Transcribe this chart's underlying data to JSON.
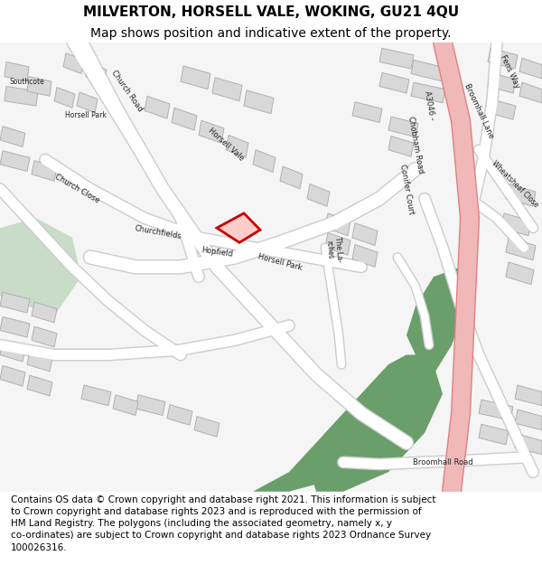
{
  "title_line1": "MILVERTON, HORSELL VALE, WOKING, GU21 4QU",
  "title_line2": "Map shows position and indicative extent of the property.",
  "copyright_text": "Contains OS data © Crown copyright and database right 2021. This information is subject to Crown copyright and database rights 2023 and is reproduced with the permission of HM Land Registry. The polygons (including the associated geometry, namely x, y co-ordinates) are subject to Crown copyright and database rights 2023 Ordnance Survey 100026316.",
  "map_bg": "#f5f5f5",
  "road_color": "#e8e8e8",
  "building_color": "#d8d8d8",
  "building_edge": "#b0b0b0",
  "green_color": "#6a9e6a",
  "green_light": "#c8dcc8",
  "pink_road": "#f0b8b8",
  "pink_road_edge": "#e08080",
  "road_white": "#ffffff",
  "marker_color": "#cc0000",
  "text_color": "#333333",
  "title_fontsize": 11,
  "subtitle_fontsize": 10,
  "copyright_fontsize": 7.5,
  "label_fontsize": 6.0,
  "label_fontsize_small": 5.5,
  "footer_text": "Contains OS data © Crown copyright and database right 2021. This information is subject\nto Crown copyright and database rights 2023 and is reproduced with the permission of\nHM Land Registry. The polygons (including the associated geometry, namely x, y\nco-ordinates) are subject to Crown copyright and database rights 2023 Ordnance Survey\n100026316."
}
